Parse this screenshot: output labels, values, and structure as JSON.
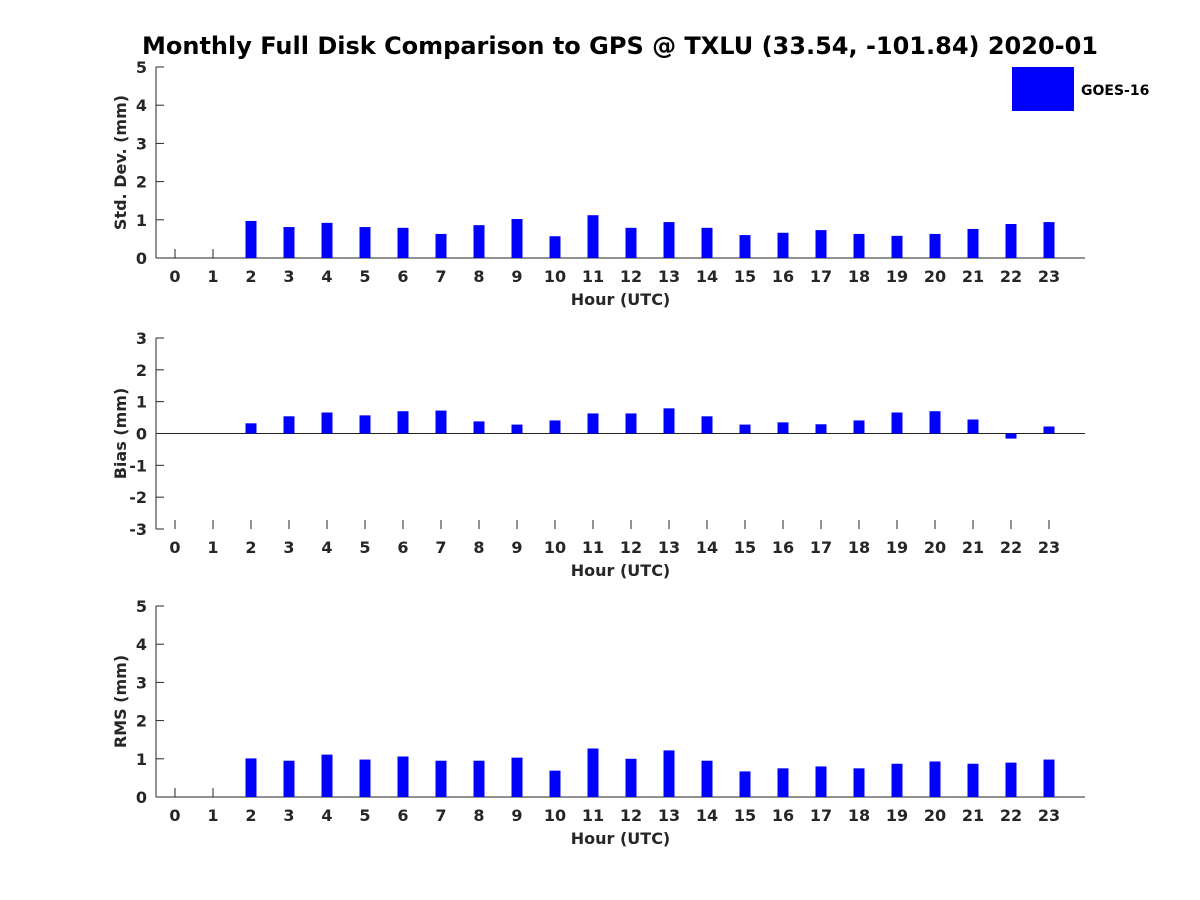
{
  "chart_data": {
    "title": "Monthly Full Disk Comparison to GPS @ TXLU (33.54, -101.84) 2020-01",
    "legend": {
      "label": "GOES-16",
      "color": "#0000ff",
      "position": "top-right"
    },
    "categories": [
      "0",
      "1",
      "2",
      "3",
      "4",
      "5",
      "6",
      "7",
      "8",
      "9",
      "10",
      "11",
      "12",
      "13",
      "14",
      "15",
      "16",
      "17",
      "18",
      "19",
      "20",
      "21",
      "22",
      "23"
    ],
    "panels": [
      {
        "type": "bar",
        "ylabel": "Std. Dev. (mm)",
        "xlabel": "Hour (UTC)",
        "ylim": [
          0,
          5
        ],
        "yticks": [
          "0",
          "1",
          "2",
          "3",
          "4",
          "5"
        ],
        "values": [
          null,
          null,
          0.97,
          0.81,
          0.92,
          0.81,
          0.79,
          0.63,
          0.86,
          1.02,
          0.57,
          1.12,
          0.79,
          0.94,
          0.79,
          0.6,
          0.66,
          0.73,
          0.63,
          0.58,
          0.63,
          0.76,
          0.89,
          0.94
        ]
      },
      {
        "type": "bar",
        "ylabel": "Bias (mm)",
        "xlabel": "Hour (UTC)",
        "ylim": [
          -3,
          3
        ],
        "yticks": [
          "-3",
          "-2",
          "-1",
          "0",
          "1",
          "2",
          "3"
        ],
        "values": [
          null,
          null,
          0.32,
          0.54,
          0.66,
          0.57,
          0.7,
          0.72,
          0.38,
          0.28,
          0.41,
          0.63,
          0.63,
          0.79,
          0.54,
          0.28,
          0.35,
          0.29,
          0.41,
          0.66,
          0.7,
          0.44,
          -0.16,
          0.22
        ]
      },
      {
        "type": "bar",
        "ylabel": "RMS (mm)",
        "xlabel": "Hour (UTC)",
        "ylim": [
          0,
          5
        ],
        "yticks": [
          "0",
          "1",
          "2",
          "3",
          "4",
          "5"
        ],
        "values": [
          null,
          null,
          1.01,
          0.95,
          1.11,
          0.98,
          1.06,
          0.95,
          0.95,
          1.03,
          0.69,
          1.27,
          1.0,
          1.22,
          0.95,
          0.67,
          0.75,
          0.8,
          0.75,
          0.87,
          0.93,
          0.87,
          0.9,
          0.98
        ]
      }
    ]
  }
}
